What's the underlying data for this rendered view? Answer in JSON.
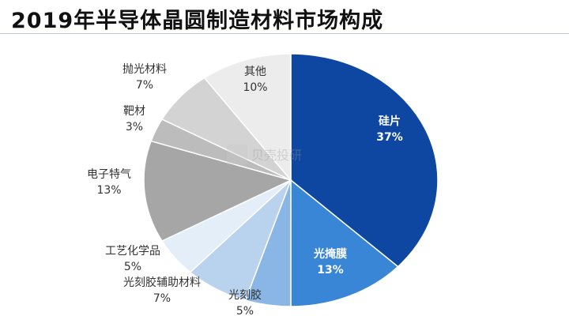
{
  "title": "2019年半导体晶圆制造材料市场构成",
  "watermark": "贝壳投研",
  "chart_data": {
    "type": "pie",
    "title": "2019年半导体晶圆制造材料市场构成",
    "unit": "%",
    "direction": "clockwise",
    "start": "12 o'clock",
    "slices": [
      {
        "label": "硅片",
        "value": 37,
        "value_text": "37%",
        "color": "#0d47a1"
      },
      {
        "label": "光掩膜",
        "value": 13,
        "value_text": "13%",
        "color": "#3a86d6"
      },
      {
        "label": "光刻胶",
        "value": 5,
        "value_text": "5%",
        "color": "#8ab6e6"
      },
      {
        "label": "光刻胶辅助材料",
        "value": 7,
        "value_text": "7%",
        "color": "#b9d3ef"
      },
      {
        "label": "工艺化学品",
        "value": 5,
        "value_text": "5%",
        "color": "#e4eef9"
      },
      {
        "label": "电子特气",
        "value": 13,
        "value_text": "13%",
        "color": "#a6a6a6"
      },
      {
        "label": "靶材",
        "value": 3,
        "value_text": "3%",
        "color": "#bcbcbc"
      },
      {
        "label": "抛光材料",
        "value": 7,
        "value_text": "7%",
        "color": "#d3d3d3"
      },
      {
        "label": "其他",
        "value": 10,
        "value_text": "10%",
        "color": "#ececec"
      }
    ]
  }
}
